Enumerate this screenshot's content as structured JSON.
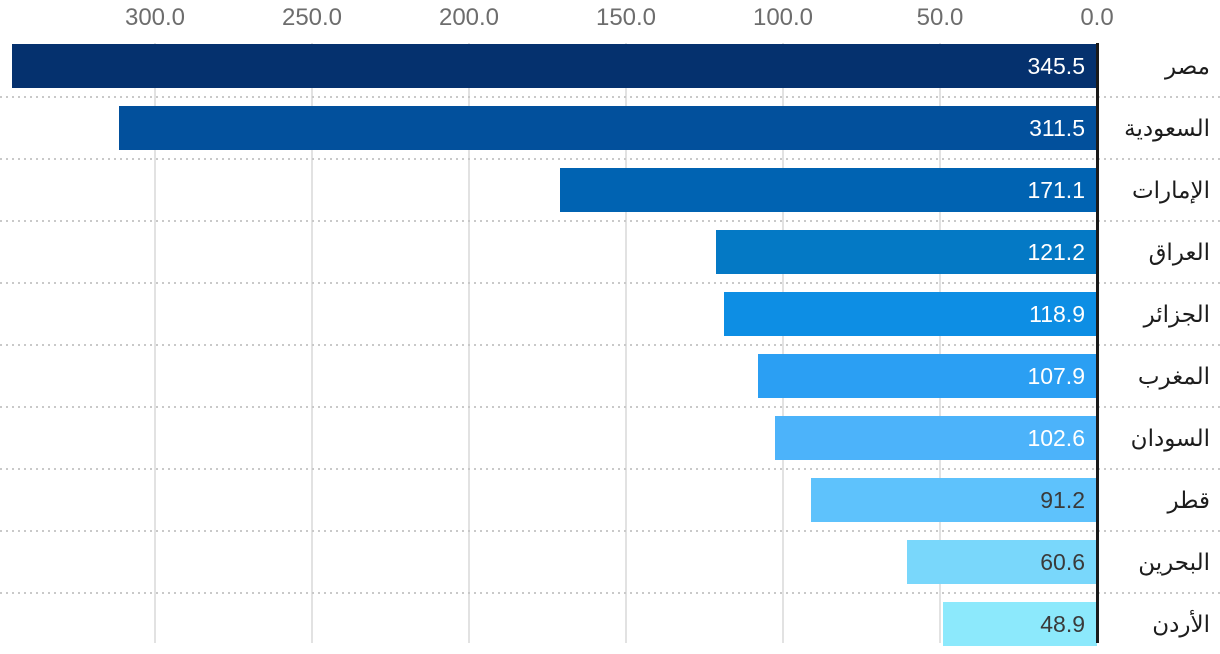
{
  "chart_data": {
    "type": "bar",
    "orientation": "horizontal",
    "direction": "rtl",
    "title": "",
    "categories": [
      "مصر",
      "السعودية",
      "الإمارات",
      "العراق",
      "الجزائر",
      "المغرب",
      "السودان",
      "قطر",
      "البحرين",
      "الأردن"
    ],
    "values": [
      345.5,
      311.5,
      171.1,
      121.2,
      118.9,
      107.9,
      102.6,
      91.2,
      60.6,
      48.9
    ],
    "value_labels": [
      "345.5",
      "311.5",
      "171.1",
      "121.2",
      "118.9",
      "107.9",
      "102.6",
      "91.2",
      "60.6",
      "48.9"
    ],
    "bar_colors": [
      "#05316e",
      "#02509c",
      "#0063b2",
      "#0479c5",
      "#0d8ee4",
      "#2b9ff3",
      "#4cb3fa",
      "#5ec2fc",
      "#79d7fb",
      "#8ce9fc"
    ],
    "value_label_colors": [
      "#ffffff",
      "#ffffff",
      "#ffffff",
      "#ffffff",
      "#ffffff",
      "#ffffff",
      "#ffffff",
      "#3a3a3a",
      "#3a3a3a",
      "#3a3a3a"
    ],
    "x_axis": {
      "position": "top",
      "reversed": true,
      "tick_labels": [
        "300.0",
        "250.0",
        "200.0",
        "150.0",
        "100.0",
        "50.0",
        "0.0"
      ],
      "tick_values": [
        300,
        250,
        200,
        150,
        100,
        50,
        0
      ],
      "tick_step": 50,
      "range": [
        0,
        349
      ]
    },
    "grid": {
      "vertical_gridlines": true,
      "row_separator_style": "dotted"
    },
    "legend": null,
    "colors": {
      "background": "#ffffff",
      "axis_line": "#1a1a1a",
      "gridline": "#e2e2e2",
      "separator": "#c9c9c9",
      "tick_label": "#6d6d6d",
      "category_label": "#1c1c1c"
    }
  }
}
